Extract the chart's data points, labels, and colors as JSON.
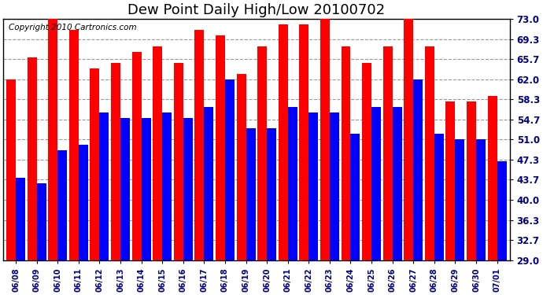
{
  "title": "Dew Point Daily High/Low 20100702",
  "copyright": "Copyright 2010 Cartronics.com",
  "labels": [
    "06/08",
    "06/09",
    "06/10",
    "06/11",
    "06/12",
    "06/13",
    "06/14",
    "06/15",
    "06/16",
    "06/17",
    "06/18",
    "06/19",
    "06/20",
    "06/21",
    "06/22",
    "06/23",
    "06/24",
    "06/25",
    "06/26",
    "06/27",
    "06/28",
    "06/29",
    "06/30",
    "07/01"
  ],
  "highs": [
    62,
    66,
    73,
    71,
    64,
    65,
    67,
    68,
    65,
    71,
    70,
    63,
    68,
    72,
    72,
    73,
    68,
    65,
    68,
    73,
    68,
    58,
    58,
    59
  ],
  "lows": [
    44,
    43,
    49,
    50,
    56,
    55,
    55,
    56,
    55,
    57,
    62,
    53,
    53,
    57,
    56,
    56,
    52,
    57,
    57,
    62,
    52,
    51,
    51,
    47
  ],
  "high_color": "#ff0000",
  "low_color": "#0000ff",
  "bg_color": "#ffffff",
  "plot_bg_color": "#ffffff",
  "grid_color": "#999999",
  "yticks": [
    29.0,
    32.7,
    36.3,
    40.0,
    43.7,
    47.3,
    51.0,
    54.7,
    58.3,
    62.0,
    65.7,
    69.3,
    73.0
  ],
  "ymin": 29.0,
  "ymax": 73.0,
  "title_fontsize": 13,
  "copyright_fontsize": 7.5
}
